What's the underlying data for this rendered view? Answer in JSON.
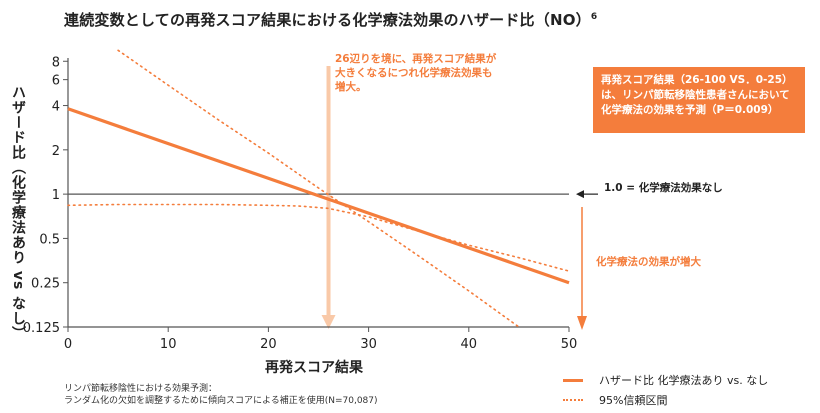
{
  "title": "連続変数としての再発スコア結果における化学療法効果のハザード比（NO）",
  "title_sup": "6",
  "annotation_lines": [
    "26辺りを境に、再発スコア結果が",
    "大きくなるにつれ化学療法効果も",
    "増大。"
  ],
  "callout_lines": [
    "再発スコア結果（26-100 VS．0-25）",
    "は、リンパ節転移陰性患者さんにおいて",
    "化学療法の効果を予測（P＝0.009）"
  ],
  "reference_label": "1.0 = 化学療法効果なし",
  "effect_label": "化学療法の効果が増大",
  "footnote_lines": [
    "リンパ節転移陰性における効果予測：",
    "ランダム化の欠如を調整するために傾向スコアによる補正を使用(N=70,087)"
  ],
  "legend": {
    "hr_label": "ハザード比 化学療法あり vs. なし",
    "ci_label": "95%信頼区間"
  },
  "colors": {
    "accent": "#f47d3c",
    "axis": "#555555",
    "reference": "#555555"
  },
  "chart_data": {
    "type": "line",
    "xlabel": "再発スコア結果",
    "ylabel": "ハザード比（化学療法あり vs なし）",
    "xlim": [
      0,
      50
    ],
    "ylim": [
      0.125,
      10
    ],
    "yscale": "log",
    "xticks": [
      0,
      10,
      20,
      30,
      40,
      50
    ],
    "yticks": [
      0.125,
      0.25,
      0.5,
      1,
      2,
      4,
      6,
      8
    ],
    "ytick_labels": [
      "0.125",
      "0.25",
      "0.5",
      "1",
      "2",
      "4",
      "6",
      "8"
    ],
    "reference_line_y": 1.0,
    "threshold_x": 26,
    "series": [
      {
        "name": "ハザード比 化学療法あり vs. なし",
        "style": "solid",
        "x": [
          0,
          50
        ],
        "y": [
          3.8,
          0.25
        ]
      },
      {
        "name": "95%信頼区間",
        "style": "dotted",
        "x": [
          5,
          10,
          15,
          20,
          25,
          30,
          35,
          40,
          45
        ],
        "y": [
          9.5,
          5.5,
          3.2,
          1.9,
          1.1,
          0.65,
          0.38,
          0.22,
          0.125
        ]
      },
      {
        "name": "95%信頼区間",
        "style": "dotted",
        "x": [
          0,
          5,
          10,
          15,
          20,
          23,
          26,
          30,
          35,
          40,
          45,
          50
        ],
        "y": [
          0.84,
          0.85,
          0.85,
          0.85,
          0.84,
          0.83,
          0.8,
          0.7,
          0.56,
          0.45,
          0.37,
          0.3
        ]
      }
    ]
  }
}
